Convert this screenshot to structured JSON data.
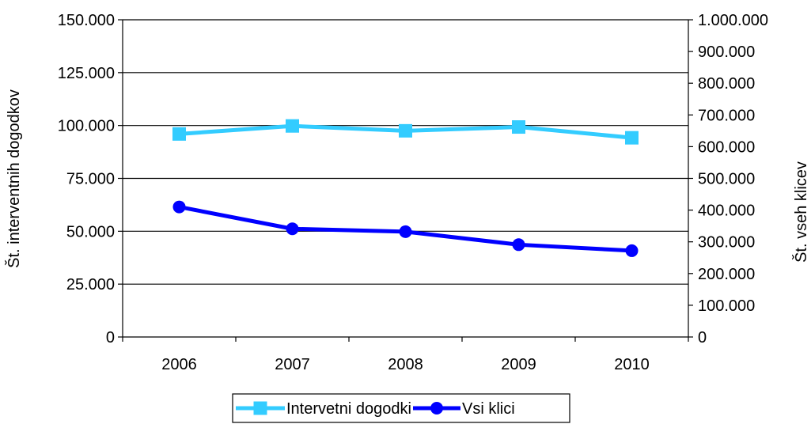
{
  "chart_data": {
    "type": "line",
    "categories": [
      "2006",
      "2007",
      "2008",
      "2009",
      "2010"
    ],
    "y_left": {
      "label": "Št. interventnih dogodkov",
      "ylim": [
        0,
        150000
      ],
      "ticks": [
        {
          "value": 0,
          "label": "0"
        },
        {
          "value": 25000,
          "label": "25.000"
        },
        {
          "value": 50000,
          "label": "50.000"
        },
        {
          "value": 75000,
          "label": "75.000"
        },
        {
          "value": 100000,
          "label": "100.000"
        },
        {
          "value": 125000,
          "label": "125.000"
        },
        {
          "value": 150000,
          "label": "150.000"
        }
      ]
    },
    "y_right": {
      "label": "Št. vseh klicev",
      "ylim": [
        0,
        1000000
      ],
      "ticks": [
        {
          "value": 0,
          "label": "0"
        },
        {
          "value": 100000,
          "label": "100.000"
        },
        {
          "value": 200000,
          "label": "200.000"
        },
        {
          "value": 300000,
          "label": "300.000"
        },
        {
          "value": 400000,
          "label": "400.000"
        },
        {
          "value": 500000,
          "label": "500.000"
        },
        {
          "value": 600000,
          "label": "600.000"
        },
        {
          "value": 700000,
          "label": "700.000"
        },
        {
          "value": 800000,
          "label": "800.000"
        },
        {
          "value": 900000,
          "label": "900.000"
        },
        {
          "value": 1000000,
          "label": "1.000.000"
        }
      ]
    },
    "series": [
      {
        "name": "Intervetni dogodki",
        "axis": "left",
        "color": "#33CCFF",
        "marker": "square",
        "values": [
          96000,
          99800,
          97500,
          99300,
          94200
        ]
      },
      {
        "name": "Vsi klici",
        "axis": "right",
        "color": "#0000FF",
        "marker": "circle",
        "values": [
          410000,
          341000,
          332000,
          291000,
          272000
        ]
      }
    ],
    "grid": "horizontal",
    "legend_position": "bottom"
  }
}
